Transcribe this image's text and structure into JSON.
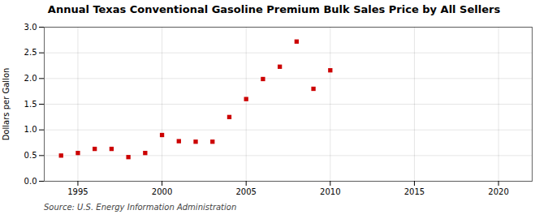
{
  "chart_data": {
    "type": "scatter",
    "title": "Annual Texas Conventional Gasoline Premium Bulk Sales Price by All Sellers",
    "ylabel": "Dollars per Gallon",
    "annotation": "Source: U.S. Energy Information Administration",
    "x": [
      1994,
      1995,
      1996,
      1997,
      1998,
      1999,
      2000,
      2001,
      2002,
      2003,
      2004,
      2005,
      2006,
      2007,
      2008,
      2009,
      2010
    ],
    "values": [
      0.5,
      0.55,
      0.63,
      0.63,
      0.47,
      0.55,
      0.9,
      0.78,
      0.77,
      0.77,
      1.25,
      1.6,
      1.99,
      2.23,
      2.72,
      1.8,
      2.16
    ],
    "color": "#cc0000",
    "marker": "square",
    "xlim": [
      1993,
      2022
    ],
    "ylim": [
      0.0,
      3.0
    ],
    "xticks": [
      1995,
      2000,
      2005,
      2010,
      2015,
      2020
    ],
    "yticks": [
      {
        "value": 0.0,
        "label": "0.0"
      },
      {
        "value": 0.5,
        "label": "0.5"
      },
      {
        "value": 1.0,
        "label": "1.0"
      },
      {
        "value": 1.5,
        "label": "1.5"
      },
      {
        "value": 2.0,
        "label": "2.0"
      },
      {
        "value": 2.5,
        "label": "2.5"
      },
      {
        "value": 3.0,
        "label": "3.0"
      }
    ],
    "grid": true
  }
}
